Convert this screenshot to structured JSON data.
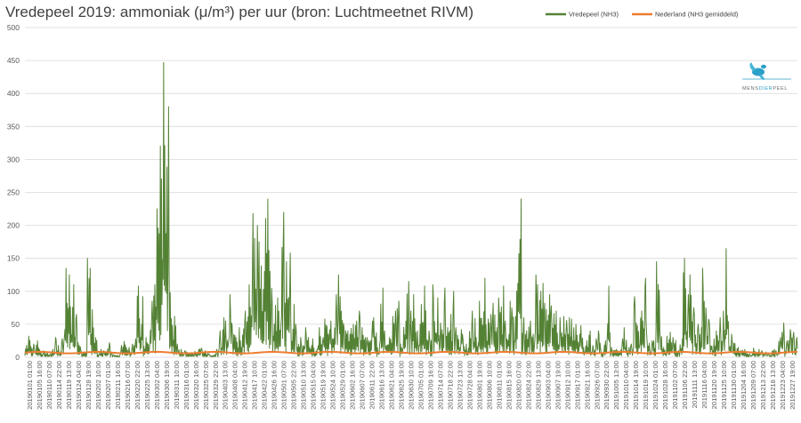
{
  "chart_data": {
    "type": "line",
    "title": "Vredepeel 2019: ammoniak (μ/m³) per uur (bron: Luchtmeetnet RIVM)",
    "xlabel": "",
    "ylabel": "",
    "ylim": [
      0,
      500
    ],
    "yticks": [
      0,
      50,
      100,
      150,
      200,
      250,
      300,
      350,
      400,
      450,
      500
    ],
    "grid": true,
    "legend_position": "top-right",
    "x_tick_labels": [
      "20190101 01:00",
      "20190105 16:00",
      "20190110 07:00",
      "20190114 22:00",
      "20190119 13:00",
      "20190124 04:00",
      "20190128 19:00",
      "20190202 10:00",
      "20190207 01:00",
      "20190211 16:00",
      "20190216 07:00",
      "20190220 22:00",
      "20190225 13:00",
      "20190302 04:00",
      "20190306 19:00",
      "20190311 10:00",
      "20190316 01:00",
      "20190320 16:00",
      "20190325 07:00",
      "20190329 22:00",
      "20190403 13:00",
      "20190408 04:00",
      "20190412 19:00",
      "20190417 10:00",
      "20190422 01:00",
      "20190426 16:00",
      "20190501 07:00",
      "20190505 22:00",
      "20190510 13:00",
      "20190515 04:00",
      "20190519 19:00",
      "20190524 10:00",
      "20190529 01:00",
      "20190602 16:00",
      "20190607 07:00",
      "20190611 22:00",
      "20190616 13:00",
      "20190621 04:00",
      "20190625 19:00",
      "20190630 10:00",
      "20190705 01:00",
      "20190709 16:00",
      "20190714 07:00",
      "20190718 22:00",
      "20190723 13:00",
      "20190728 04:00",
      "20190801 19:00",
      "20190806 10:00",
      "20190811 01:00",
      "20190815 16:00",
      "20190820 07:00",
      "20190824 22:00",
      "20190829 13:00",
      "20190903 04:00",
      "20190907 19:00",
      "20190912 10:00",
      "20190917 01:00",
      "20190921 16:00",
      "20190926 07:00",
      "20190930 22:00",
      "20191005 13:00",
      "20191010 04:00",
      "20191014 19:00",
      "20191019 10:00",
      "20191024 01:00",
      "20191028 16:00",
      "20191102 07:00",
      "20191106 22:00",
      "20191111 13:00",
      "20191116 04:00",
      "20191120 19:00",
      "20191125 10:00",
      "20191130 01:00",
      "20191204 16:00",
      "20191209 07:00",
      "20191213 22:00",
      "20191218 13:00",
      "20191223 04:00",
      "20191227 19:00"
    ],
    "series": [
      {
        "name": "Vredepeel (NH3)",
        "color": "#548235",
        "daily_max": [
          18,
          32,
          20,
          25,
          14,
          10,
          8,
          5,
          12,
          30,
          18,
          28,
          135,
          125,
          110,
          65,
          22,
          10,
          8,
          150,
          72,
          30,
          6,
          12,
          10,
          22,
          8,
          4,
          3,
          18,
          24,
          15,
          20,
          28,
          108,
          92,
          30,
          22,
          85,
          110,
          225,
          320,
          447,
          380,
          98,
          62,
          20,
          12,
          10,
          8,
          7,
          9,
          12,
          14,
          10,
          6,
          5,
          4,
          12,
          40,
          60,
          55,
          95,
          48,
          30,
          45,
          55,
          70,
          110,
          218,
          200,
          175,
          130,
          240,
          162,
          105,
          90,
          70,
          220,
          145,
          158,
          80,
          50,
          30,
          20,
          45,
          30,
          28,
          12,
          45,
          30,
          58,
          42,
          55,
          95,
          125,
          70,
          45,
          40,
          50,
          55,
          70,
          45,
          30,
          30,
          55,
          60,
          20,
          105,
          40,
          30,
          62,
          70,
          85,
          20,
          55,
          115,
          70,
          95,
          40,
          80,
          108,
          40,
          30,
          110,
          90,
          52,
          105,
          45,
          65,
          100,
          45,
          42,
          35,
          20,
          45,
          70,
          30,
          85,
          120,
          58,
          65,
          82,
          45,
          90,
          108,
          55,
          85,
          75,
          112,
          240,
          60,
          40,
          55,
          35,
          125,
          100,
          112,
          82,
          95,
          78,
          70,
          60,
          62,
          56,
          60,
          58,
          50,
          35,
          48,
          25,
          40,
          18,
          28,
          40,
          12,
          25,
          108,
          15,
          12,
          10,
          28,
          45,
          15,
          20,
          92,
          48,
          70,
          120,
          35,
          25,
          40,
          145,
          40,
          15,
          32,
          38,
          30,
          10,
          28,
          150,
          95,
          125,
          75,
          50,
          45,
          135,
          75,
          55,
          28,
          40,
          60,
          70,
          165,
          35,
          25,
          15,
          10,
          12,
          8,
          5,
          14,
          8,
          12,
          10,
          8,
          6,
          12,
          10,
          30,
          52,
          25,
          42,
          38,
          30
        ]
      },
      {
        "name": "Nederland (NH3 gemiddeld)",
        "color": "#ed7d31",
        "level": 7
      }
    ]
  },
  "logo": {
    "text_main": "MENS",
    "text_accent": "DIER",
    "text_end": "PEEL",
    "color": "#2aa0c8"
  }
}
